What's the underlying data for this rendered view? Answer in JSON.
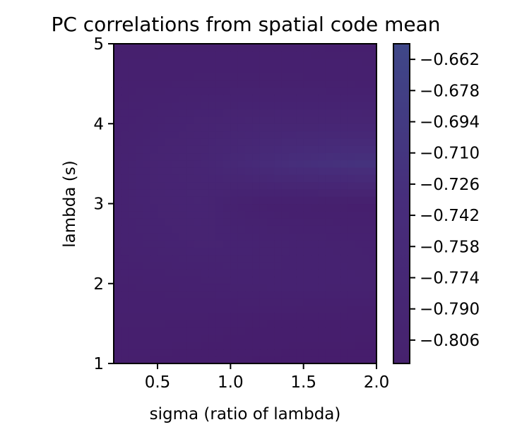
{
  "chart_data": {
    "type": "heatmap",
    "title": "PC correlations from spatial code mean",
    "xlabel": "sigma (ratio of lambda)",
    "ylabel": "lambda (s)",
    "xlim": [
      0.2,
      2.0
    ],
    "ylim": [
      1,
      5
    ],
    "x_ticks": [
      "0.5",
      "1.0",
      "1.5",
      "2.0"
    ],
    "y_ticks": [
      "1",
      "2",
      "3",
      "4",
      "5"
    ],
    "colorbar": {
      "ticks": [
        "−0.662",
        "−0.678",
        "−0.694",
        "−0.710",
        "−0.726",
        "−0.742",
        "−0.758",
        "−0.774",
        "−0.790",
        "−0.806"
      ],
      "range": [
        -0.818,
        -0.654
      ],
      "colormap": "viridis"
    },
    "x": [
      0.2,
      0.5,
      0.8,
      1.1,
      1.4,
      1.7,
      2.0
    ],
    "y": [
      1.0,
      1.5,
      2.0,
      2.5,
      3.0,
      3.5,
      4.0,
      4.5,
      5.0
    ],
    "z": [
      [
        -0.8,
        -0.802,
        -0.804,
        -0.806,
        -0.808,
        -0.808,
        -0.808
      ],
      [
        -0.796,
        -0.796,
        -0.798,
        -0.8,
        -0.802,
        -0.803,
        -0.804
      ],
      [
        -0.792,
        -0.79,
        -0.788,
        -0.784,
        -0.782,
        -0.783,
        -0.785
      ],
      [
        -0.786,
        -0.78,
        -0.776,
        -0.778,
        -0.782,
        -0.785,
        -0.788
      ],
      [
        -0.784,
        -0.776,
        -0.772,
        -0.79,
        -0.795,
        -0.797,
        -0.798
      ],
      [
        -0.786,
        -0.774,
        -0.768,
        -0.75,
        -0.732,
        -0.722,
        -0.718
      ],
      [
        -0.79,
        -0.782,
        -0.775,
        -0.77,
        -0.768,
        -0.768,
        -0.768
      ],
      [
        -0.794,
        -0.792,
        -0.79,
        -0.79,
        -0.79,
        -0.791,
        -0.792
      ],
      [
        -0.796,
        -0.796,
        -0.796,
        -0.796,
        -0.796,
        -0.797,
        -0.798
      ]
    ]
  }
}
